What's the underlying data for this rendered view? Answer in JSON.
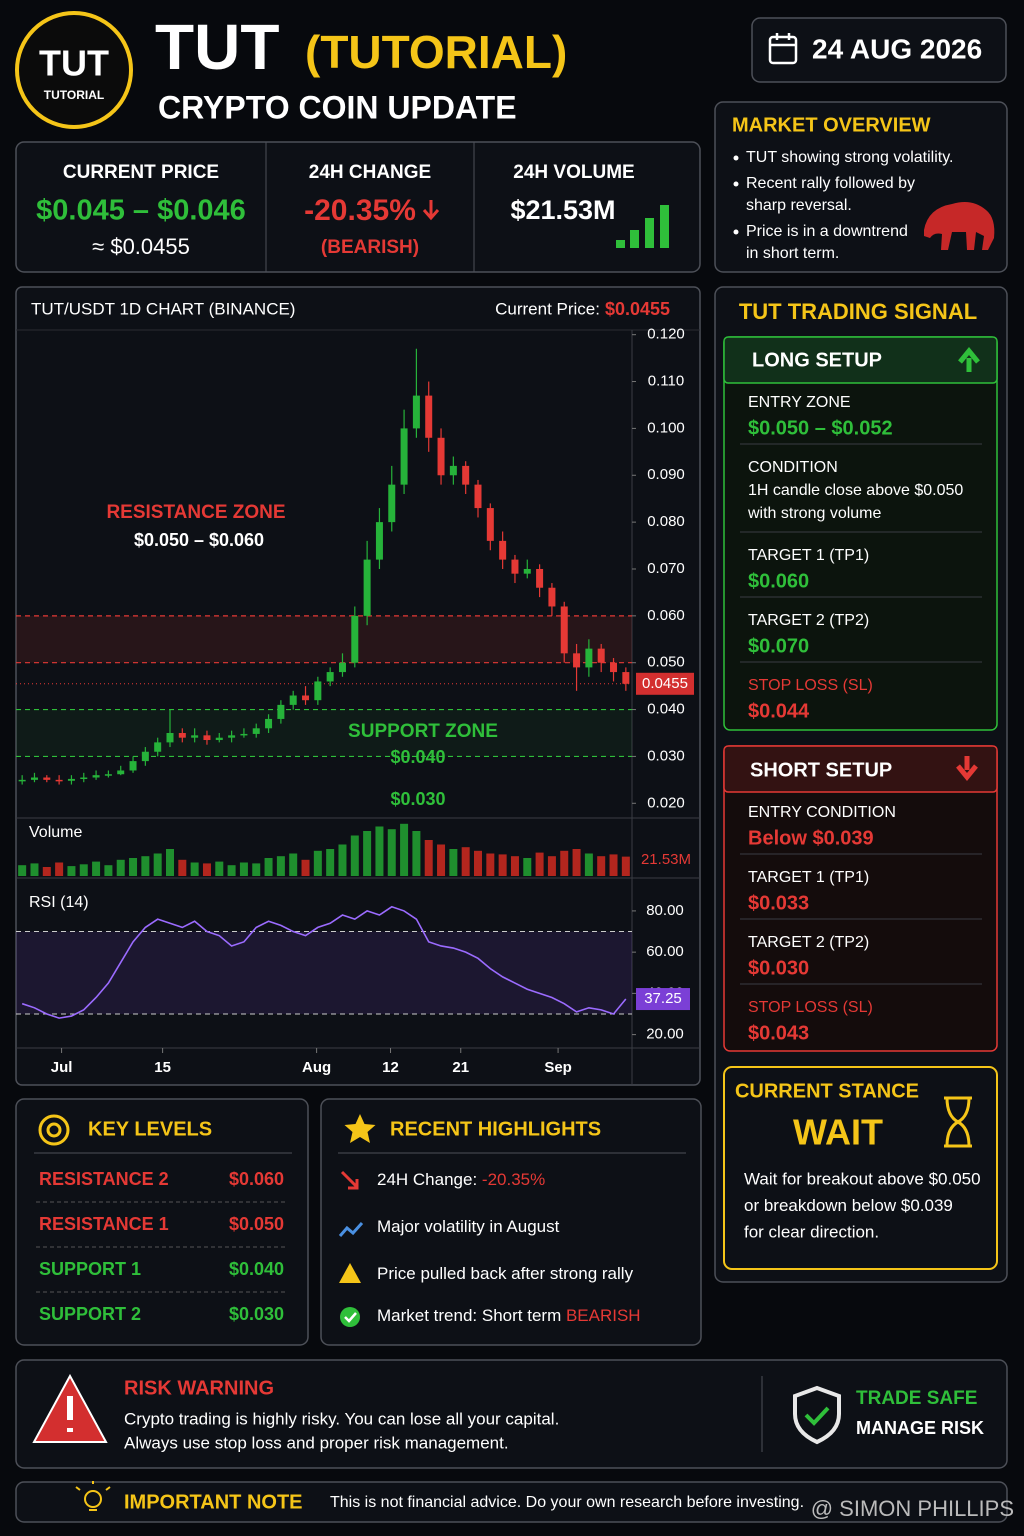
{
  "header": {
    "logo_main": "TUT",
    "logo_sub": "TUTORIAL",
    "title": "TUT",
    "title_paren": "(TUTORIAL)",
    "subtitle": "CRYPTO COIN UPDATE",
    "date": "24 AUG 2026"
  },
  "stats": [
    {
      "label": "CURRENT PRICE",
      "value": "$0.045 – $0.046",
      "sub": "≈ $0.0455"
    },
    {
      "label": "24H CHANGE",
      "value": "-20.35%",
      "sub": "(BEARISH)"
    },
    {
      "label": "24H VOLUME",
      "value": "$21.53M"
    }
  ],
  "market_overview": {
    "title": "MARKET OVERVIEW",
    "bullets": [
      [
        "TUT showing strong volatility."
      ],
      [
        "Recent rally followed by",
        "sharp reversal."
      ],
      [
        "Price is in a downtrend",
        "in short term."
      ]
    ]
  },
  "chart_data": {
    "type": "candlestick",
    "title": "TUT/USDT  1D CHART (BINANCE)",
    "current_price_label": "Current Price:",
    "current_price": "$0.0455",
    "open": [
      0.0248,
      0.025,
      0.0255,
      0.025,
      0.0248,
      0.0252,
      0.0255,
      0.026,
      0.0262,
      0.027,
      0.029,
      0.031,
      0.033,
      0.035,
      0.034,
      0.0345,
      0.0335,
      0.034,
      0.0345,
      0.0348,
      0.036,
      0.038,
      0.041,
      0.043,
      0.042,
      0.046,
      0.048,
      0.05,
      0.06,
      0.072,
      0.08,
      0.088,
      0.1,
      0.107,
      0.098,
      0.09,
      0.092,
      0.088,
      0.083,
      0.076,
      0.072,
      0.069,
      0.07,
      0.066,
      0.062,
      0.052,
      0.049,
      0.053,
      0.05,
      0.048
    ],
    "high": [
      0.026,
      0.0265,
      0.026,
      0.026,
      0.026,
      0.0265,
      0.027,
      0.027,
      0.028,
      0.03,
      0.032,
      0.034,
      0.04,
      0.036,
      0.036,
      0.0355,
      0.035,
      0.0355,
      0.036,
      0.037,
      0.039,
      0.042,
      0.044,
      0.045,
      0.047,
      0.049,
      0.052,
      0.062,
      0.076,
      0.083,
      0.092,
      0.104,
      0.117,
      0.11,
      0.1,
      0.094,
      0.093,
      0.089,
      0.084,
      0.078,
      0.073,
      0.072,
      0.071,
      0.067,
      0.063,
      0.054,
      0.055,
      0.054,
      0.051,
      0.049
    ],
    "low": [
      0.024,
      0.0245,
      0.0245,
      0.024,
      0.024,
      0.0245,
      0.025,
      0.0255,
      0.026,
      0.0265,
      0.028,
      0.03,
      0.032,
      0.033,
      0.033,
      0.0325,
      0.033,
      0.033,
      0.034,
      0.034,
      0.035,
      0.037,
      0.04,
      0.041,
      0.041,
      0.045,
      0.047,
      0.049,
      0.058,
      0.07,
      0.078,
      0.086,
      0.098,
      0.095,
      0.088,
      0.088,
      0.086,
      0.081,
      0.074,
      0.07,
      0.067,
      0.068,
      0.064,
      0.06,
      0.05,
      0.044,
      0.047,
      0.048,
      0.046,
      0.044
    ],
    "close": [
      0.025,
      0.0255,
      0.025,
      0.0248,
      0.0252,
      0.0255,
      0.026,
      0.0262,
      0.027,
      0.029,
      0.031,
      0.033,
      0.035,
      0.034,
      0.0345,
      0.0335,
      0.034,
      0.0345,
      0.0348,
      0.036,
      0.038,
      0.041,
      0.043,
      0.042,
      0.046,
      0.048,
      0.05,
      0.06,
      0.072,
      0.08,
      0.088,
      0.1,
      0.107,
      0.098,
      0.09,
      0.092,
      0.088,
      0.083,
      0.076,
      0.072,
      0.069,
      0.07,
      0.066,
      0.062,
      0.052,
      0.049,
      0.053,
      0.05,
      0.048,
      0.0455
    ],
    "xlim": [
      0,
      50
    ],
    "xticks": [
      {
        "value": 3.7,
        "label": "Jul"
      },
      {
        "value": 11.9,
        "label": "15"
      },
      {
        "value": 24.4,
        "label": "Aug"
      },
      {
        "value": 30.4,
        "label": "12"
      },
      {
        "value": 36.1,
        "label": "21"
      },
      {
        "value": 44,
        "label": "Sep"
      }
    ],
    "ylim": [
      0.0175,
      0.121
    ],
    "yticks": [
      {
        "value": 0.12,
        "label": "0.120"
      },
      {
        "value": 0.11,
        "label": "0.110"
      },
      {
        "value": 0.1,
        "label": "0.100"
      },
      {
        "value": 0.09,
        "label": "0.090"
      },
      {
        "value": 0.08,
        "label": "0.080"
      },
      {
        "value": 0.07,
        "label": "0.070"
      },
      {
        "value": 0.06,
        "label": "0.060"
      },
      {
        "value": 0.05,
        "label": "0.050"
      },
      {
        "value": 0.04,
        "label": "0.040"
      },
      {
        "value": 0.03,
        "label": "0.030"
      },
      {
        "value": 0.02,
        "label": "0.020"
      }
    ],
    "resistance_zone": {
      "label": "RESISTANCE ZONE",
      "range_label": "$0.050 – $0.060",
      "low": 0.05,
      "high": 0.06
    },
    "support_zone": {
      "label": "SUPPORT ZONE",
      "high_label": "$0.040",
      "low_label": "$0.030",
      "low": 0.03,
      "high": 0.04
    },
    "current": {
      "value": 0.0455,
      "label": "0.0455"
    },
    "volume": {
      "title": "Volume",
      "ylim": [
        0,
        60
      ],
      "values": [
        12,
        14,
        10,
        15,
        11,
        13,
        16,
        12,
        18,
        20,
        22,
        25,
        30,
        18,
        15,
        14,
        16,
        12,
        15,
        14,
        20,
        22,
        25,
        18,
        28,
        30,
        35,
        45,
        50,
        55,
        52,
        58,
        50,
        40,
        35,
        30,
        32,
        28,
        25,
        24,
        22,
        20,
        26,
        22,
        28,
        30,
        25,
        22,
        24,
        21.53
      ],
      "last_label": "21.53M"
    },
    "rsi": {
      "title": "RSI (14)",
      "ylim": [
        13.5,
        95
      ],
      "yticks": [
        {
          "value": 80,
          "label": "80.00"
        },
        {
          "value": 60,
          "label": "60.00"
        },
        {
          "value": 40,
          "label": "40.00"
        },
        {
          "value": 20,
          "label": "20.00"
        }
      ],
      "levels": [
        70,
        30
      ],
      "values": [
        35,
        33,
        30,
        28,
        29,
        32,
        38,
        45,
        55,
        65,
        72,
        76,
        74,
        72,
        75,
        70,
        68,
        63,
        65,
        72,
        75,
        73,
        70,
        68,
        72,
        74,
        78,
        76,
        80,
        78,
        82,
        80,
        76,
        65,
        63,
        62,
        60,
        57,
        52,
        48,
        45,
        42,
        40,
        38,
        35,
        31,
        33,
        32,
        30,
        37.25
      ],
      "current": {
        "value": 37.25,
        "label": "37.25"
      }
    }
  },
  "signal": {
    "title": "TUT TRADING SIGNAL",
    "long": {
      "title": "LONG SETUP",
      "items": [
        {
          "label": "ENTRY ZONE",
          "value": [
            "$0.050 – $0.052"
          ]
        },
        {
          "label": "CONDITION",
          "value": [
            "1H candle close above $0.050",
            "with strong volume"
          ]
        },
        {
          "label": "TARGET 1 (TP1)",
          "value": [
            "$0.060"
          ]
        },
        {
          "label": "TARGET 2 (TP2)",
          "value": [
            "$0.070"
          ]
        },
        {
          "label": "STOP LOSS (SL)",
          "value": [
            "$0.044"
          ]
        }
      ]
    },
    "short": {
      "title": "SHORT SETUP",
      "items": [
        {
          "label": "ENTRY CONDITION",
          "value": [
            "Below $0.039"
          ]
        },
        {
          "label": "TARGET 1 (TP1)",
          "value": [
            "$0.033"
          ]
        },
        {
          "label": "TARGET 2 (TP2)",
          "value": [
            "$0.030"
          ]
        },
        {
          "label": "STOP LOSS (SL)",
          "value": [
            "$0.043"
          ]
        }
      ]
    }
  },
  "stance": {
    "title": "CURRENT STANCE",
    "value": "WAIT",
    "text": [
      "Wait for breakout above $0.050",
      "or breakdown below $0.039",
      "for clear direction."
    ]
  },
  "key_levels": {
    "title": "KEY LEVELS",
    "resistance": [
      {
        "name": "RESISTANCE 2",
        "value": "$0.060"
      },
      {
        "name": "RESISTANCE 1",
        "value": "$0.050"
      }
    ],
    "support": [
      {
        "name": "SUPPORT 1",
        "value": "$0.040"
      },
      {
        "name": "SUPPORT 2",
        "value": "$0.030"
      }
    ]
  },
  "highlights": {
    "title": "RECENT HIGHLIGHTS",
    "items": [
      {
        "text": "24H Change: ",
        "accent": "-20.35%"
      },
      {
        "text": "Major volatility in August"
      },
      {
        "text": "Price pulled back after strong rally"
      },
      {
        "text": "Market trend: Short term ",
        "accent": "BEARISH"
      }
    ]
  },
  "risk": {
    "title": "RISK WARNING",
    "lines": [
      "Crypto trading is highly risky. You can lose all your capital.",
      "Always use stop loss and proper risk management."
    ],
    "badge_title": "TRADE SAFE",
    "badge_sub": "MANAGE RISK"
  },
  "note": {
    "title": "IMPORTANT NOTE",
    "text": "This is not financial advice. Do your own research before investing.",
    "watermark": "@ SIMON PHILLIPS"
  }
}
